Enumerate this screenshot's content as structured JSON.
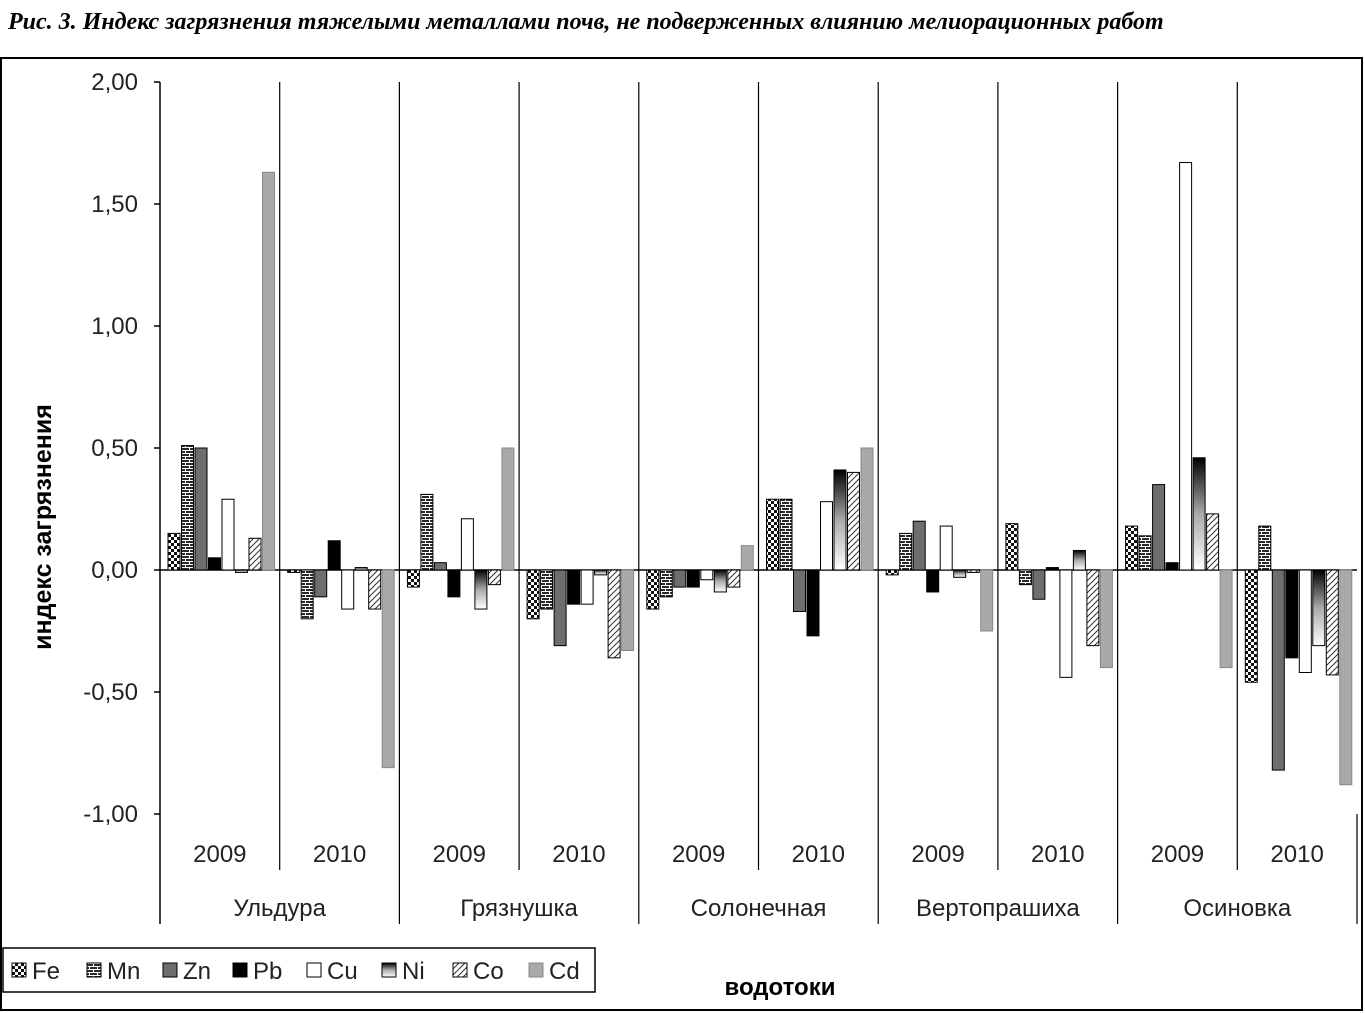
{
  "caption": "Рис. 3. Индекс загрязнения тяжелыми металлами почв, не подверженных влиянию мелиорационных работ",
  "chart_data": {
    "type": "bar",
    "title": "",
    "ylabel": "индекс загрязнения",
    "xlabel": "водотоки",
    "ylim": [
      -1.0,
      2.0
    ],
    "yticks": [
      2.0,
      1.5,
      1.0,
      0.5,
      0.0,
      -0.5,
      -1.0
    ],
    "ytick_labels": [
      "2,00",
      "1,50",
      "1,00",
      "0,50",
      "0,00",
      "-0,50",
      "-1,00"
    ],
    "grid": false,
    "legend_position": "bottom-left",
    "groups": [
      "Ульдура",
      "Грязнушка",
      "Солонечная",
      "Вертопрашиха",
      "Осиновка"
    ],
    "years": [
      "2009",
      "2010"
    ],
    "categories": [
      "Ульдура 2009",
      "Ульдура 2010",
      "Грязнушка 2009",
      "Грязнушка 2010",
      "Солонечная 2009",
      "Солонечная 2010",
      "Вертопрашиха 2009",
      "Вертопрашиха 2010",
      "Осиновка 2009",
      "Осиновка 2010"
    ],
    "series": [
      {
        "name": "Fe",
        "values": [
          0.15,
          -0.01,
          -0.07,
          -0.2,
          -0.16,
          0.29,
          -0.02,
          0.19,
          0.18,
          -0.46
        ]
      },
      {
        "name": "Mn",
        "values": [
          0.51,
          -0.2,
          0.31,
          -0.16,
          -0.11,
          0.29,
          0.15,
          -0.06,
          0.14,
          0.18
        ]
      },
      {
        "name": "Zn",
        "values": [
          0.5,
          -0.11,
          0.03,
          -0.31,
          -0.07,
          -0.17,
          0.2,
          -0.12,
          0.35,
          -0.82
        ]
      },
      {
        "name": "Pb",
        "values": [
          0.05,
          0.12,
          -0.11,
          -0.14,
          -0.07,
          -0.27,
          -0.09,
          0.01,
          0.03,
          -0.36
        ]
      },
      {
        "name": "Cu",
        "values": [
          0.29,
          -0.16,
          0.21,
          -0.14,
          -0.04,
          0.28,
          0.18,
          -0.44,
          1.67,
          -0.42
        ]
      },
      {
        "name": "Ni",
        "values": [
          -0.01,
          0.01,
          -0.16,
          -0.02,
          -0.09,
          0.41,
          -0.03,
          0.08,
          0.46,
          -0.31
        ]
      },
      {
        "name": "Co",
        "values": [
          0.13,
          -0.16,
          -0.06,
          -0.36,
          -0.07,
          0.4,
          -0.01,
          -0.31,
          0.23,
          -0.43
        ]
      },
      {
        "name": "Cd",
        "values": [
          1.63,
          -0.81,
          0.5,
          -0.33,
          0.1,
          0.5,
          -0.25,
          -0.4,
          -0.4,
          -0.88
        ]
      }
    ]
  }
}
